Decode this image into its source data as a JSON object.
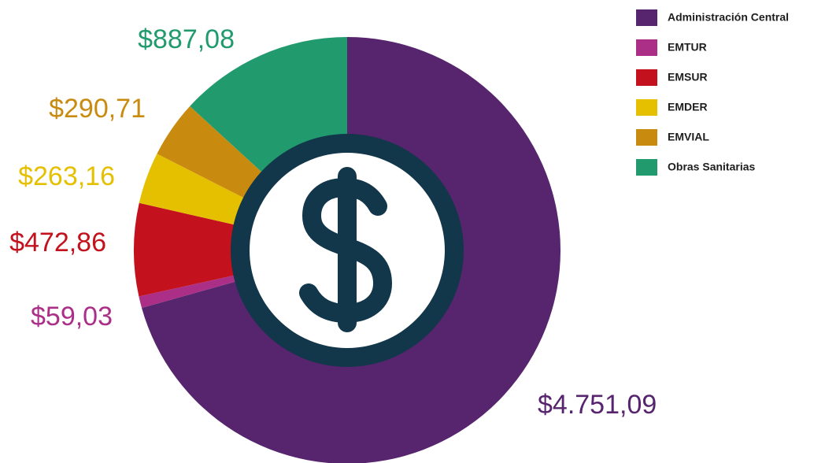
{
  "chart_data": {
    "type": "pie",
    "categories": [
      "Administración Central",
      "EMTUR",
      "EMSUR",
      "EMDER",
      "EMVIAL",
      "Obras Sanitarias"
    ],
    "values": [
      4751.09,
      59.03,
      472.86,
      263.16,
      290.71,
      887.08
    ],
    "value_labels": [
      "$4.751,09",
      "$59,03",
      "$472,86",
      "$263,16",
      "$290,71",
      "$887,08"
    ],
    "colors": [
      "#57246e",
      "#ab2f87",
      "#c3121d",
      "#e5c000",
      "#c98a10",
      "#219b6d"
    ],
    "legend": "top-right"
  }
}
